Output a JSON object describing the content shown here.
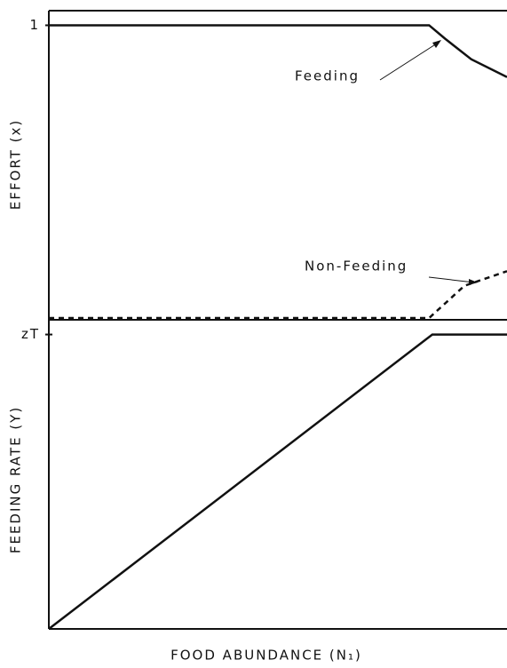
{
  "chart_data": [
    {
      "type": "line",
      "ylabel": "EFFORT (x)",
      "xlim": [
        0,
        1
      ],
      "ylim": [
        0,
        1.05
      ],
      "yticks": [
        1
      ],
      "series": [
        {
          "name": "Feeding",
          "color": "#111111",
          "dash": false,
          "x": [
            0,
            0.83,
            0.865,
            0.922,
            1
          ],
          "values": [
            1,
            1,
            0.954,
            0.884,
            0.823
          ]
        },
        {
          "name": "Non-Feeding",
          "color": "#111111",
          "dash": true,
          "x": [
            0,
            0.83,
            0.907,
            1
          ],
          "values": [
            0,
            0,
            0.11,
            0.16
          ]
        }
      ],
      "annotations": [
        "Feeding",
        "Non-Feeding"
      ]
    },
    {
      "type": "line",
      "ylabel": "FEEDING RATE (Y)",
      "xlabel": "FOOD ABUNDANCE (N₁)",
      "xlim": [
        0,
        1
      ],
      "ylim": [
        0,
        1.05
      ],
      "yticks": [
        {
          "value": 1,
          "label": "zT"
        }
      ],
      "series": [
        {
          "name": "Feeding rate",
          "color": "#111111",
          "dash": false,
          "x": [
            0,
            0.837,
            1
          ],
          "values": [
            0,
            1,
            1
          ]
        }
      ]
    }
  ]
}
